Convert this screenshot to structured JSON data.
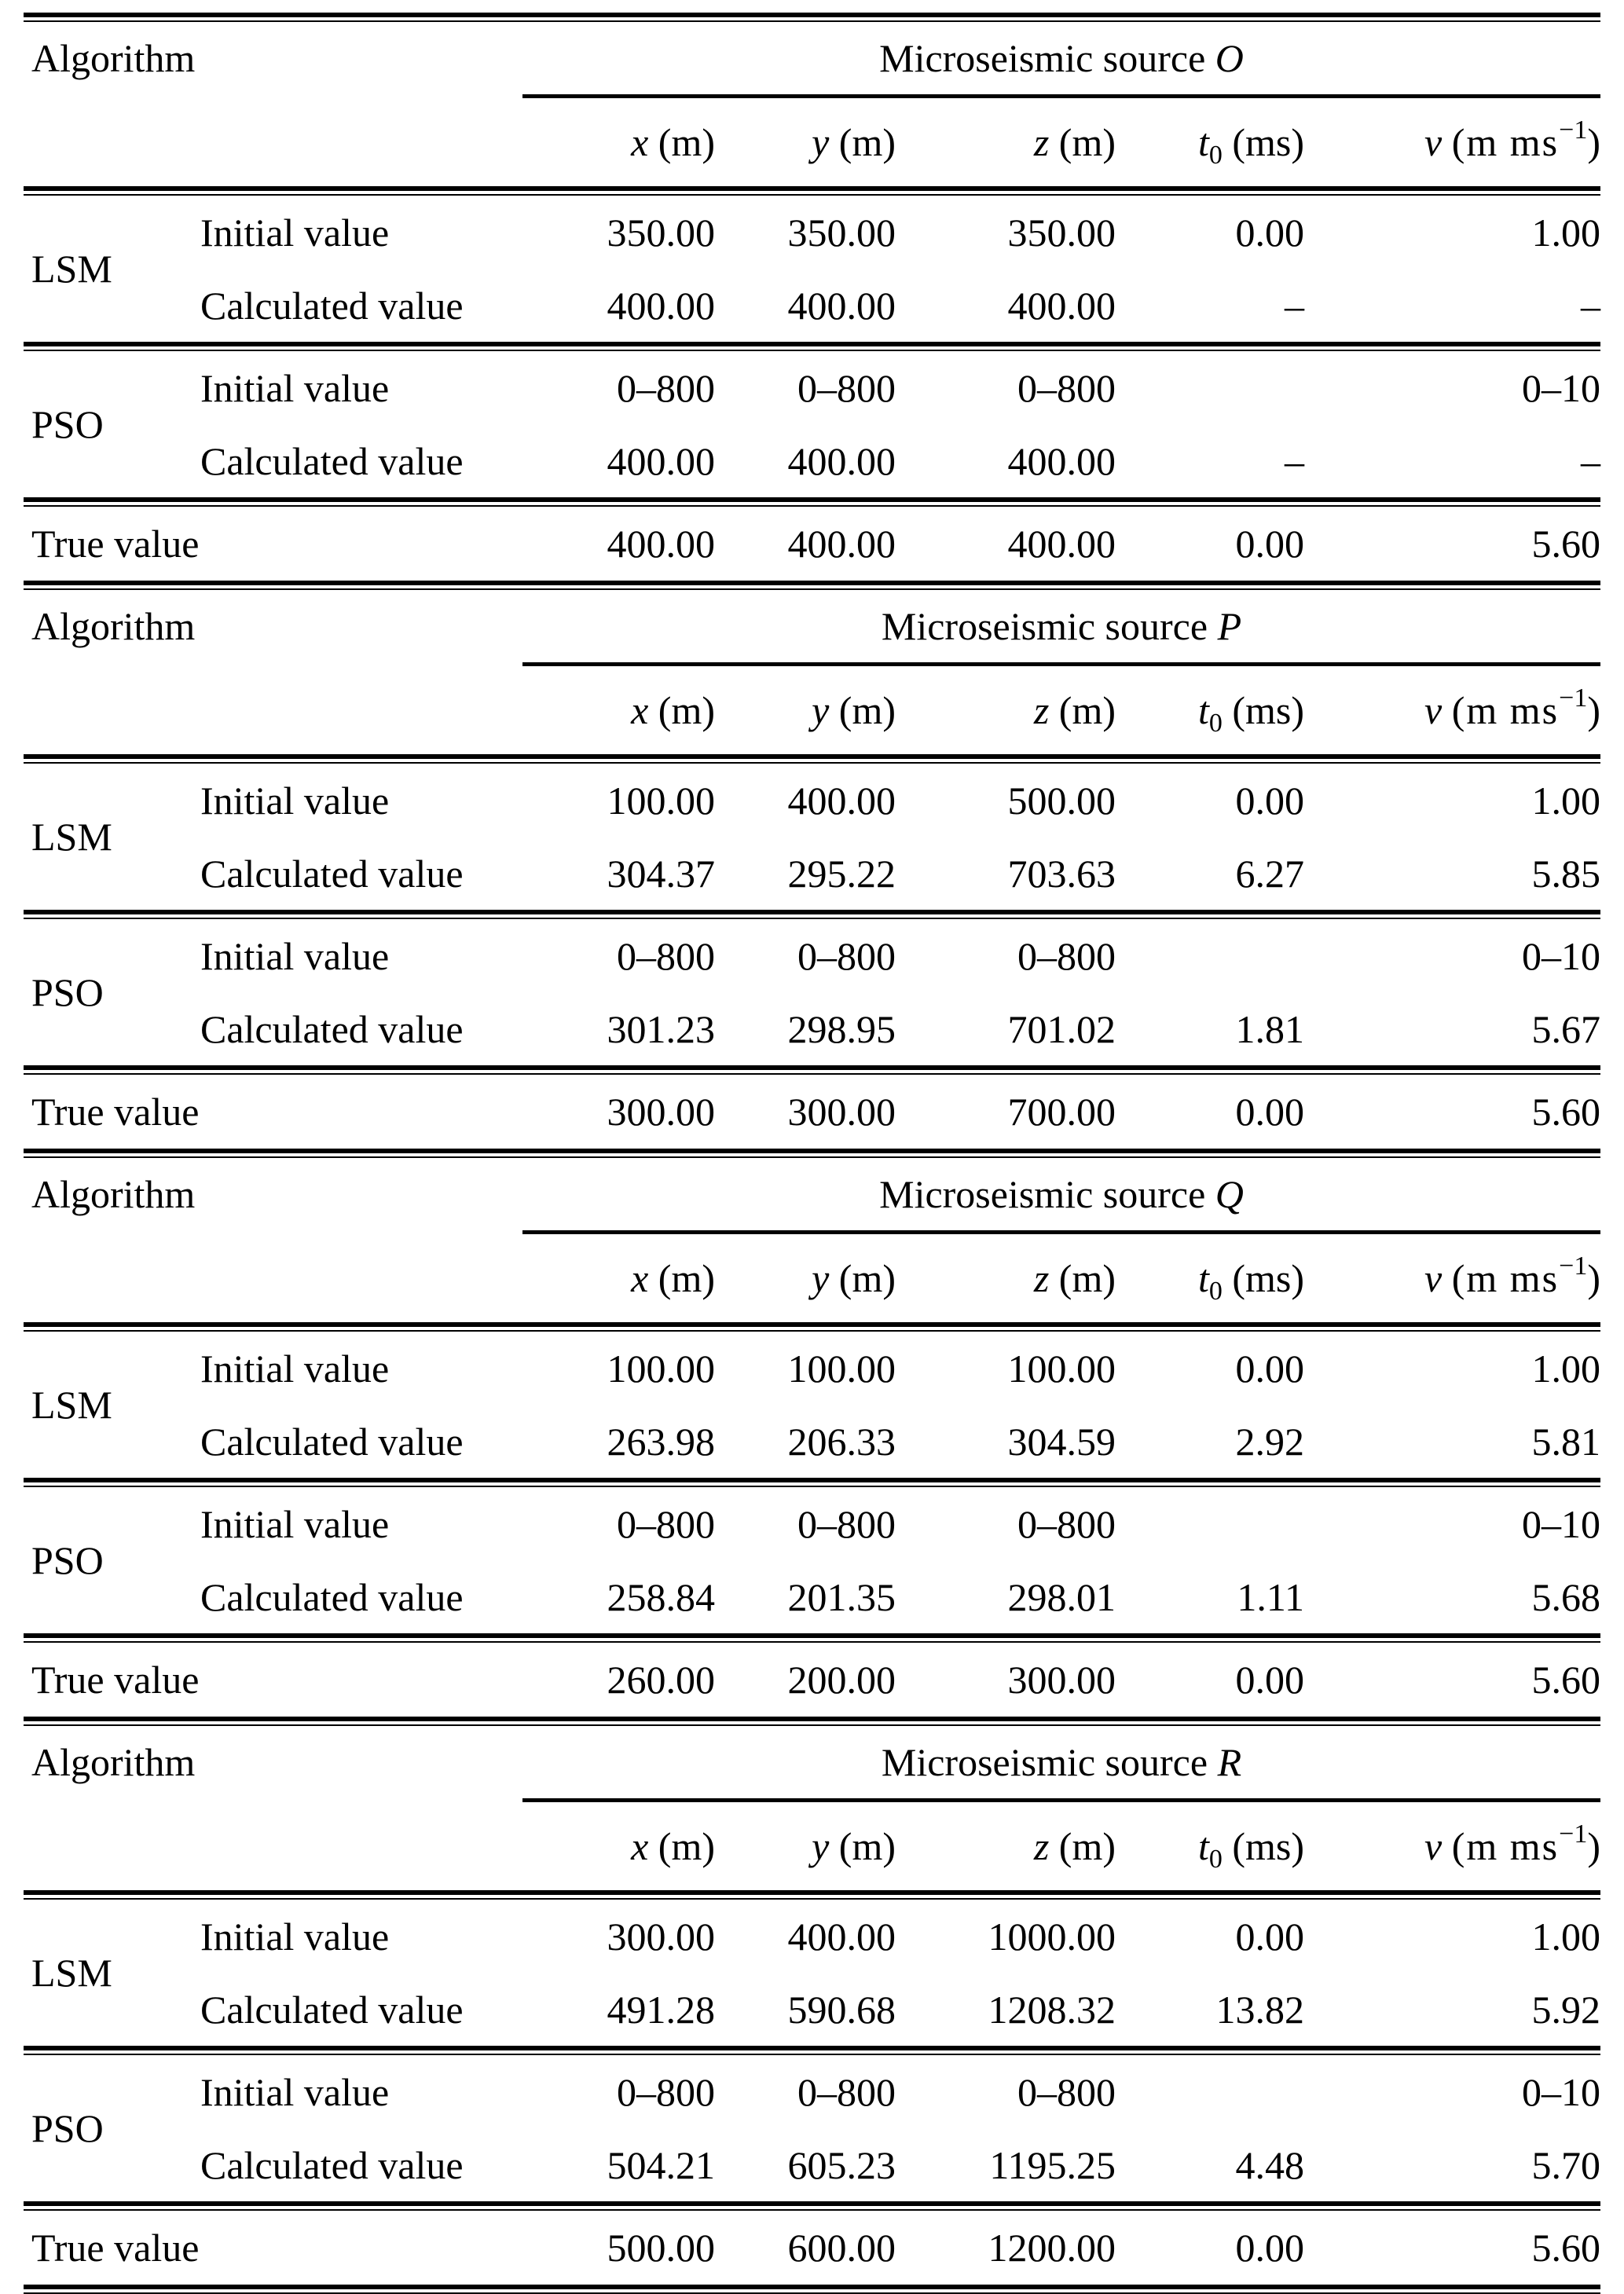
{
  "table": {
    "labels": {
      "algorithm": "Algorithm",
      "lsm": "LSM",
      "pso": "PSO",
      "initial": "Initial value",
      "calculated": "Calculated value",
      "true": "True value"
    },
    "col_headers": [
      {
        "symbol": "x",
        "unit": "(m)"
      },
      {
        "symbol": "y",
        "unit": "(m)"
      },
      {
        "symbol": "z",
        "unit": "(m)"
      },
      {
        "symbol": "t",
        "subscript": "0",
        "unit": "(ms)"
      },
      {
        "symbol": "v",
        "unit_open": "(m ms",
        "superscript": "−1",
        "unit_close": ")"
      }
    ],
    "blocks": [
      {
        "source_prefix": "Microseismic source",
        "source_id": "O",
        "lsm_initial": [
          "350.00",
          "350.00",
          "350.00",
          "0.00",
          "1.00"
        ],
        "lsm_calculated": [
          "400.00",
          "400.00",
          "400.00",
          "–",
          "–"
        ],
        "pso_initial": [
          "0–800",
          "0–800",
          "0–800",
          "",
          "0–10"
        ],
        "pso_calculated": [
          "400.00",
          "400.00",
          "400.00",
          "–",
          "–"
        ],
        "true_values": [
          "400.00",
          "400.00",
          "400.00",
          "0.00",
          "5.60"
        ]
      },
      {
        "source_prefix": "Microseismic source",
        "source_id": "P",
        "lsm_initial": [
          "100.00",
          "400.00",
          "500.00",
          "0.00",
          "1.00"
        ],
        "lsm_calculated": [
          "304.37",
          "295.22",
          "703.63",
          "6.27",
          "5.85"
        ],
        "pso_initial": [
          "0–800",
          "0–800",
          "0–800",
          "",
          "0–10"
        ],
        "pso_calculated": [
          "301.23",
          "298.95",
          "701.02",
          "1.81",
          "5.67"
        ],
        "true_values": [
          "300.00",
          "300.00",
          "700.00",
          "0.00",
          "5.60"
        ]
      },
      {
        "source_prefix": "Microseismic source",
        "source_id": "Q",
        "lsm_initial": [
          "100.00",
          "100.00",
          "100.00",
          "0.00",
          "1.00"
        ],
        "lsm_calculated": [
          "263.98",
          "206.33",
          "304.59",
          "2.92",
          "5.81"
        ],
        "pso_initial": [
          "0–800",
          "0–800",
          "0–800",
          "",
          "0–10"
        ],
        "pso_calculated": [
          "258.84",
          "201.35",
          "298.01",
          "1.11",
          "5.68"
        ],
        "true_values": [
          "260.00",
          "200.00",
          "300.00",
          "0.00",
          "5.60"
        ]
      },
      {
        "source_prefix": "Microseismic source",
        "source_id": "R",
        "lsm_initial": [
          "300.00",
          "400.00",
          "1000.00",
          "0.00",
          "1.00"
        ],
        "lsm_calculated": [
          "491.28",
          "590.68",
          "1208.32",
          "13.82",
          "5.92"
        ],
        "pso_initial": [
          "0–800",
          "0–800",
          "0–800",
          "",
          "0–10"
        ],
        "pso_calculated": [
          "504.21",
          "605.23",
          "1195.25",
          "4.48",
          "5.70"
        ],
        "true_values": [
          "500.00",
          "600.00",
          "1200.00",
          "0.00",
          "5.60"
        ]
      }
    ]
  }
}
